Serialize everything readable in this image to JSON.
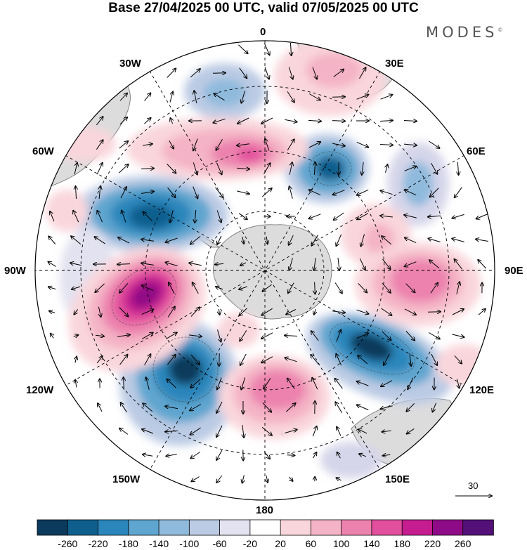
{
  "title": "Base 27/04/2025 00 UTC, valid 07/05/2025 00 UTC",
  "brand": "MODES",
  "brand_mark": "©",
  "longitude_labels": {
    "lon_0": "0",
    "lon_30e": "30E",
    "lon_60e": "60E",
    "lon_90e": "90E",
    "lon_120e": "120E",
    "lon_150e": "150E",
    "lon_180": "180",
    "lon_150w": "150W",
    "lon_120w": "120W",
    "lon_90w": "90W",
    "lon_60w": "60W",
    "lon_30w": "30W"
  },
  "vector_scale": {
    "label": "30"
  },
  "colorbar": {
    "labels": [
      "-260",
      "-220",
      "-180",
      "-140",
      "-100",
      "-60",
      "-20",
      "20",
      "60",
      "100",
      "140",
      "180",
      "220",
      "260"
    ],
    "colors": [
      "#0b3a5c",
      "#0f5f8e",
      "#2a86bb",
      "#5ea5cf",
      "#8fbadc",
      "#bccbe4",
      "#e2e2f0",
      "#ffffff",
      "#f9d6dc",
      "#f4b3c6",
      "#ec82ad",
      "#e24f9d",
      "#c51c8f",
      "#8f0a86",
      "#521078"
    ]
  },
  "map": {
    "projection": "south-polar-stereographic",
    "field_colors": {
      "land": "#d9d9d9",
      "coast": "#6b6b6b",
      "grid": "#000000",
      "arrow": "#000000"
    }
  }
}
